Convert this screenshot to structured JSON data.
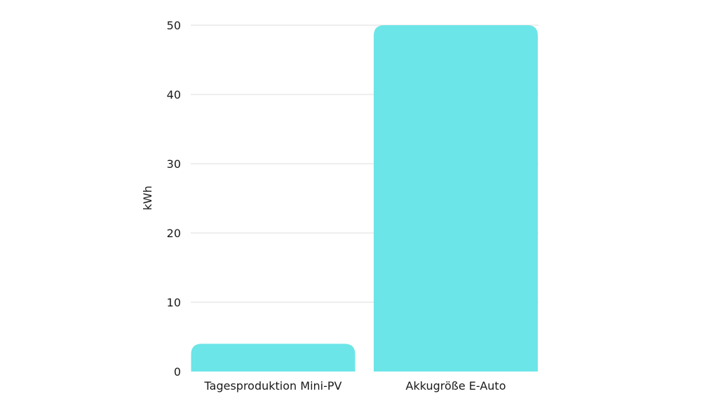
{
  "chart_data": {
    "type": "bar",
    "title": "",
    "xlabel": "",
    "ylabel": "kWh",
    "categories": [
      "Tagesproduktion Mini-PV",
      "Akkugröße E-Auto"
    ],
    "values": [
      4,
      50
    ],
    "ylim": [
      0,
      50
    ],
    "yticks": [
      0,
      10,
      20,
      30,
      40,
      50
    ],
    "grid": true,
    "legend": "none",
    "colors": {
      "bar": "#6ce5e8",
      "grid": "#dedede",
      "text": "#1a1a1a"
    }
  }
}
